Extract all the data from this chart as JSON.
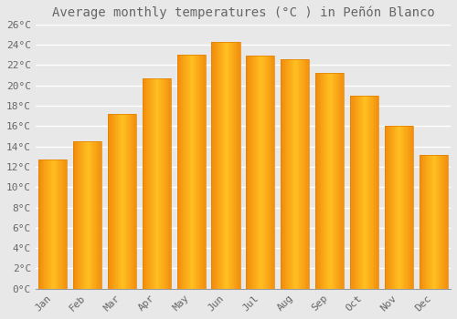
{
  "title": "Average monthly temperatures (°C ) in Peñón Blanco",
  "months": [
    "Jan",
    "Feb",
    "Mar",
    "Apr",
    "May",
    "Jun",
    "Jul",
    "Aug",
    "Sep",
    "Oct",
    "Nov",
    "Dec"
  ],
  "values": [
    12.7,
    14.5,
    17.2,
    20.7,
    23.0,
    24.3,
    22.9,
    22.6,
    21.2,
    19.0,
    16.0,
    13.2
  ],
  "bar_color_center": "#FFC020",
  "bar_color_edge": "#E08000",
  "ylim": [
    0,
    26
  ],
  "ytick_step": 2,
  "background_color": "#e8e8e8",
  "plot_bg_color": "#e8e8e8",
  "grid_color": "#ffffff",
  "text_color": "#666666",
  "title_fontsize": 10,
  "tick_fontsize": 8,
  "bar_width": 0.82
}
